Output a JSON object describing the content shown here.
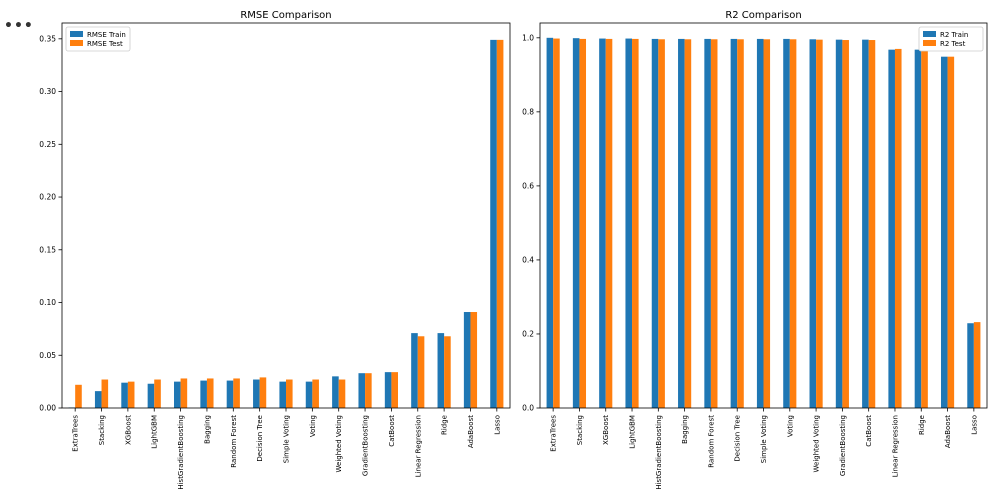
{
  "cell": {
    "ellipsis": "•••"
  },
  "colors": {
    "train": "#1f77b4",
    "test": "#ff7f0e"
  },
  "chart_data": [
    {
      "type": "bar",
      "title": "RMSE Comparison",
      "xlabel": "",
      "ylabel": "",
      "ylim": [
        0,
        0.365
      ],
      "yticks": [
        0.0,
        0.05,
        0.1,
        0.15,
        0.2,
        0.25,
        0.3,
        0.35
      ],
      "ytick_labels": [
        "0.00",
        "0.05",
        "0.10",
        "0.15",
        "0.20",
        "0.25",
        "0.30",
        "0.35"
      ],
      "legend": "top-left",
      "categories": [
        "ExtraTrees",
        "Stacking",
        "XGBoost",
        "LightGBM",
        "HistGradientBoosting",
        "Bagging",
        "Random Forest",
        "Decision Tree",
        "Simple Voting",
        "Voting",
        "Weighted Voting",
        "GradientBoosting",
        "CatBoost",
        "Linear Regression",
        "Ridge",
        "AdaBoost",
        "Lasso"
      ],
      "series": [
        {
          "name": "RMSE Train",
          "values": [
            0.0005,
            0.016,
            0.024,
            0.023,
            0.025,
            0.026,
            0.026,
            0.027,
            0.025,
            0.025,
            0.03,
            0.033,
            0.034,
            0.071,
            0.071,
            0.091,
            0.349
          ]
        },
        {
          "name": "RMSE Test",
          "values": [
            0.022,
            0.027,
            0.025,
            0.027,
            0.028,
            0.028,
            0.028,
            0.029,
            0.027,
            0.027,
            0.027,
            0.033,
            0.034,
            0.068,
            0.068,
            0.091,
            0.349
          ]
        }
      ]
    },
    {
      "type": "bar",
      "title": "R2 Comparison",
      "xlabel": "",
      "ylabel": "",
      "ylim": [
        0,
        1.04
      ],
      "yticks": [
        0.0,
        0.2,
        0.4,
        0.6,
        0.8,
        1.0
      ],
      "ytick_labels": [
        "0.0",
        "0.2",
        "0.4",
        "0.6",
        "0.8",
        "1.0"
      ],
      "legend": "top-right",
      "categories": [
        "ExtraTrees",
        "Stacking",
        "XGBoost",
        "LightGBM",
        "HistGradientBoosting",
        "Bagging",
        "Random Forest",
        "Decision Tree",
        "Simple Voting",
        "Voting",
        "Weighted Voting",
        "GradientBoosting",
        "CatBoost",
        "Linear Regression",
        "Ridge",
        "AdaBoost",
        "Lasso"
      ],
      "series": [
        {
          "name": "R2 Train",
          "values": [
            1.0,
            0.999,
            0.998,
            0.998,
            0.997,
            0.997,
            0.997,
            0.997,
            0.997,
            0.997,
            0.996,
            0.995,
            0.995,
            0.968,
            0.968,
            0.949,
            0.229
          ]
        },
        {
          "name": "R2 Test",
          "values": [
            0.998,
            0.997,
            0.997,
            0.997,
            0.996,
            0.996,
            0.996,
            0.996,
            0.996,
            0.996,
            0.995,
            0.994,
            0.994,
            0.97,
            0.97,
            0.949,
            0.232
          ]
        }
      ]
    }
  ]
}
